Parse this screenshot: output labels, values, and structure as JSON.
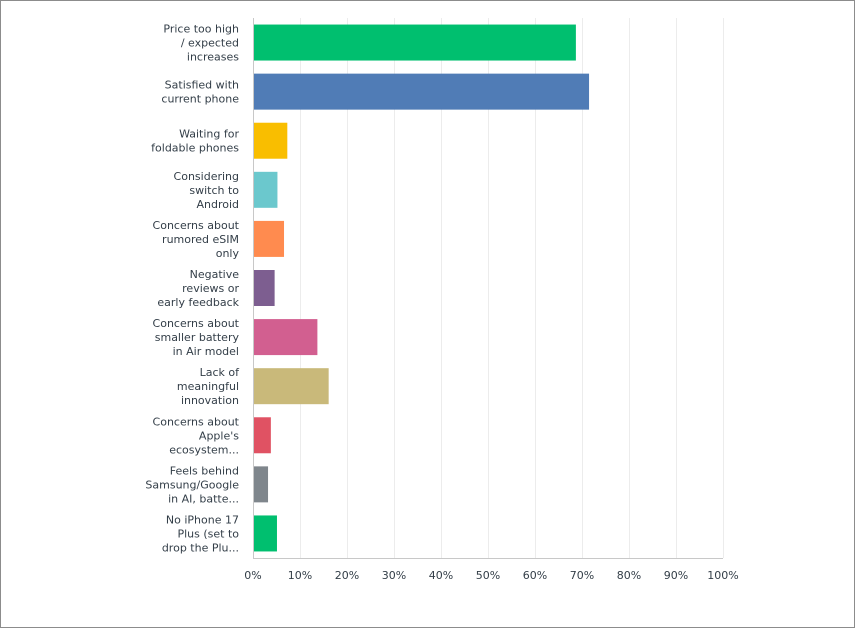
{
  "chart_data": {
    "type": "bar",
    "orientation": "horizontal",
    "categories": [
      "Price too high / expected increases",
      "Satisfied with current phone",
      "Waiting for foldable phones",
      "Considering switch to Android",
      "Concerns about rumored eSIM only",
      "Negative reviews or early feedback",
      "Concerns about smaller battery in Air model",
      "Lack of meaningful innovation",
      "Concerns about Apple's ecosystem...",
      "Feels behind Samsung/Google in AI, batte...",
      "No iPhone 17 Plus (set to drop the Plu..."
    ],
    "category_lines": [
      [
        "Price too high",
        "/ expected",
        "increases"
      ],
      [
        "Satisfied with",
        "current phone"
      ],
      [
        "Waiting for",
        "foldable phones"
      ],
      [
        "Considering",
        "switch to",
        "Android"
      ],
      [
        "Concerns about",
        "rumored eSIM",
        "only"
      ],
      [
        "Negative",
        "reviews or",
        "early feedback"
      ],
      [
        "Concerns about",
        "smaller battery",
        "in Air model"
      ],
      [
        "Lack of",
        "meaningful",
        "innovation"
      ],
      [
        "Concerns about",
        "Apple's",
        "ecosystem..."
      ],
      [
        "Feels behind",
        "Samsung/Google",
        "in AI, batte..."
      ],
      [
        "No iPhone 17",
        "Plus (set to",
        "drop the Plu..."
      ]
    ],
    "values": [
      68.7,
      71.5,
      7.3,
      5.2,
      6.6,
      4.6,
      13.7,
      16.1,
      3.8,
      3.2,
      5.1
    ],
    "colors": [
      "#00bf6f",
      "#507cb6",
      "#f9be00",
      "#6bc8cd",
      "#ff8b4f",
      "#7d5e90",
      "#d25f90",
      "#c9b97a",
      "#e05263",
      "#7f868c",
      "#00bf6f"
    ],
    "xlim": [
      0,
      100
    ],
    "xticks": [
      "0%",
      "10%",
      "20%",
      "30%",
      "40%",
      "50%",
      "60%",
      "70%",
      "80%",
      "90%",
      "100%"
    ],
    "grid": true,
    "title": "",
    "xlabel": "",
    "ylabel": ""
  }
}
